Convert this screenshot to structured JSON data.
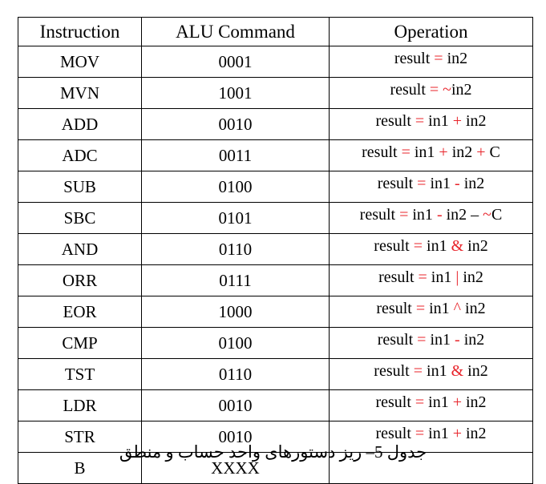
{
  "table": {
    "headers": [
      "Instruction",
      "ALU Command",
      "Operation"
    ],
    "rows": [
      {
        "instruction": "MOV",
        "command": "0001",
        "operation": [
          [
            "result",
            0
          ],
          [
            " = ",
            1
          ],
          [
            "in2",
            0
          ]
        ]
      },
      {
        "instruction": "MVN",
        "command": "1001",
        "operation": [
          [
            "result",
            0
          ],
          [
            " = ",
            1
          ],
          [
            "~",
            1
          ],
          [
            "in2",
            0
          ]
        ]
      },
      {
        "instruction": "ADD",
        "command": "0010",
        "operation": [
          [
            "result",
            0
          ],
          [
            " = ",
            1
          ],
          [
            "in1",
            0
          ],
          [
            " + ",
            1
          ],
          [
            "in2",
            0
          ]
        ]
      },
      {
        "instruction": "ADC",
        "command": "0011",
        "operation": [
          [
            "result",
            0
          ],
          [
            " = ",
            1
          ],
          [
            "in1",
            0
          ],
          [
            " + ",
            1
          ],
          [
            "in2",
            0
          ],
          [
            " + ",
            1
          ],
          [
            "C",
            0
          ]
        ]
      },
      {
        "instruction": "SUB",
        "command": "0100",
        "operation": [
          [
            "result",
            0
          ],
          [
            " = ",
            1
          ],
          [
            "in1",
            0
          ],
          [
            " - ",
            1
          ],
          [
            "in2",
            0
          ]
        ]
      },
      {
        "instruction": "SBC",
        "command": "0101",
        "operation": [
          [
            "result",
            0
          ],
          [
            " = ",
            1
          ],
          [
            "in1",
            0
          ],
          [
            " - ",
            1
          ],
          [
            "in2",
            0
          ],
          [
            " – ",
            0
          ],
          [
            "~",
            1
          ],
          [
            "C",
            0
          ]
        ]
      },
      {
        "instruction": "AND",
        "command": "0110",
        "operation": [
          [
            "result",
            0
          ],
          [
            " = ",
            1
          ],
          [
            "in1",
            0
          ],
          [
            " & ",
            1
          ],
          [
            "in2",
            0
          ]
        ]
      },
      {
        "instruction": "ORR",
        "command": "0111",
        "operation": [
          [
            "result",
            0
          ],
          [
            " = ",
            1
          ],
          [
            "in1",
            0
          ],
          [
            " | ",
            1
          ],
          [
            "in2",
            0
          ]
        ]
      },
      {
        "instruction": "EOR",
        "command": "1000",
        "operation": [
          [
            "result",
            0
          ],
          [
            " = ",
            1
          ],
          [
            "in1",
            0
          ],
          [
            " ^ ",
            1
          ],
          [
            "in2",
            0
          ]
        ]
      },
      {
        "instruction": "CMP",
        "command": "0100",
        "operation": [
          [
            "result",
            0
          ],
          [
            " = ",
            1
          ],
          [
            "in1",
            0
          ],
          [
            " - ",
            1
          ],
          [
            "in2",
            0
          ]
        ]
      },
      {
        "instruction": "TST",
        "command": "0110",
        "operation": [
          [
            "result",
            0
          ],
          [
            " = ",
            1
          ],
          [
            "in1",
            0
          ],
          [
            " & ",
            1
          ],
          [
            "in2",
            0
          ]
        ]
      },
      {
        "instruction": "LDR",
        "command": "0010",
        "operation": [
          [
            "result",
            0
          ],
          [
            " = ",
            1
          ],
          [
            "in1",
            0
          ],
          [
            " + ",
            1
          ],
          [
            "in2",
            0
          ]
        ]
      },
      {
        "instruction": "STR",
        "command": "0010",
        "operation": [
          [
            "result",
            0
          ],
          [
            " = ",
            1
          ],
          [
            "in1",
            0
          ],
          [
            " + ",
            1
          ],
          [
            "in2",
            0
          ]
        ]
      },
      {
        "instruction": "B",
        "command": "XXXX",
        "operation": []
      }
    ]
  },
  "caption": "جدول 5– ریز دستورهای واحد حساب و منطق",
  "colors": {
    "operator": "#e8232a",
    "text": "#000000",
    "border": "#000000"
  }
}
